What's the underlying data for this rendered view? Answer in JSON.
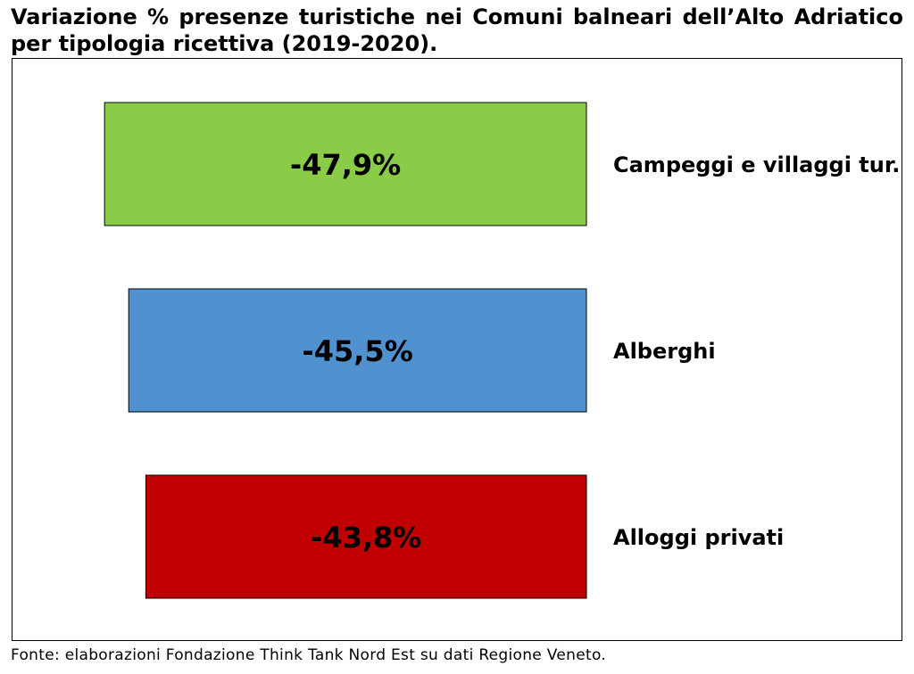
{
  "title": "Variazione % presenze turistiche nei Comuni balneari dell’Alto Adriatico per tipologia ricettiva (2019-2020).",
  "source": "Fonte: elaborazioni Fondazione Think Tank Nord Est su dati Regione Veneto.",
  "chart_data": {
    "type": "bar",
    "orientation": "horizontal",
    "title": "Variazione % presenze turistiche nei Comuni balneari dell’Alto Adriatico per tipologia ricettiva (2019-2020).",
    "categories": [
      "Campeggi e villaggi tur.",
      "Alberghi",
      "Alloggi privati"
    ],
    "values": [
      -47.9,
      -45.5,
      -43.8
    ],
    "data_labels": [
      "-47,9%",
      "-45,5%",
      "-43,8%"
    ],
    "colors": [
      "#8ACB48",
      "#5091CF",
      "#C00000"
    ],
    "unit": "%",
    "grid": false,
    "legend": "none"
  }
}
